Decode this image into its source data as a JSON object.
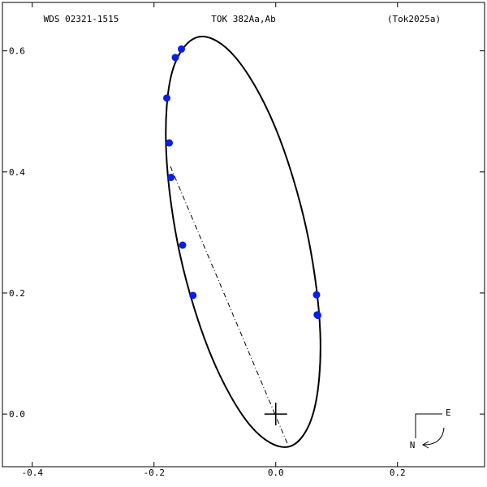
{
  "chart_data": {
    "type": "orbit",
    "title": "TOK 382Aa,Ab",
    "left_title": "WDS 02321-1515",
    "right_title": "(Tok2025a)",
    "compass": {
      "east": "E",
      "north": "N"
    },
    "xlim": [
      -0.449,
      0.343
    ],
    "ylim": [
      -0.087,
      0.68
    ],
    "xticks": [
      -0.4,
      -0.2,
      {
        "value": 0,
        "label": "0.0"
      },
      0.2
    ],
    "yticks": [
      {
        "value": 0,
        "label": "0.0"
      },
      0.2,
      0.4,
      0.6
    ],
    "orbit": {
      "color": "#000000",
      "x": [
        -0.127,
        -0.066,
        -0.001,
        0.05,
        0.073,
        0.062,
        0.021,
        -0.041,
        -0.106,
        -0.157,
        -0.18,
        -0.17
      ],
      "y": [
        0.623,
        0.589,
        0.474,
        0.307,
        0.135,
        0.003,
        -0.054,
        -0.02,
        0.096,
        0.262,
        0.434,
        0.566
      ]
    },
    "line_of_nodes": {
      "x": [
        -0.173,
        0.02
      ],
      "y": [
        0.409,
        -0.051
      ]
    },
    "primary": {
      "x": 0,
      "y": 0
    },
    "observations": {
      "color": "#0a1ee6",
      "x": [
        -0.165,
        -0.155,
        -0.179,
        -0.175,
        -0.172,
        -0.153,
        -0.136,
        0.067,
        0.068,
        0.069
      ],
      "y": [
        0.589,
        0.603,
        0.522,
        0.448,
        0.391,
        0.279,
        0.196,
        0.197,
        0.164,
        0.163
      ]
    }
  }
}
